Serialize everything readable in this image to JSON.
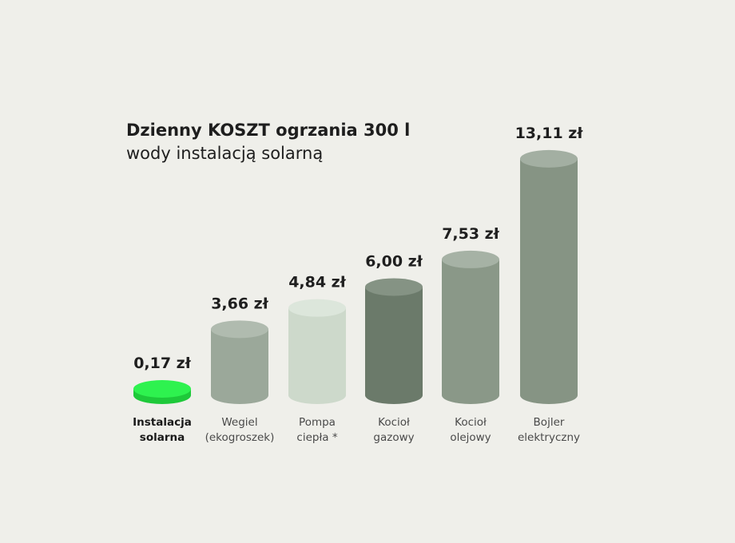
{
  "chart_data": {
    "type": "bar",
    "title_line1": "Dzienny KOSZT ogrzania 300 l",
    "title_line2": "wody instalacją solarną",
    "xlabel": "",
    "ylabel": "",
    "ylim": [
      0,
      14
    ],
    "grid": false,
    "categories": [
      [
        "Instalacja",
        "solarna"
      ],
      [
        "Wegiel",
        "(ekogroszek)"
      ],
      [
        "Pompa",
        "ciepła *"
      ],
      [
        "Kocioł",
        "gazowy"
      ],
      [
        "Kocioł",
        "olejowy"
      ],
      [
        "Bojler",
        "elektryczny"
      ]
    ],
    "values": [
      0.17,
      3.66,
      4.84,
      6.0,
      7.53,
      13.11
    ],
    "value_labels": [
      "0,17 zł",
      "3,66 zł",
      "4,84 zł",
      "6,00 zł",
      "7,53 zł",
      "13,11 zł"
    ],
    "colors": [
      {
        "body": "#1ec93a",
        "top": "#2ef24f"
      },
      {
        "body": "#9ba89a",
        "top": "#b0bbaf"
      },
      {
        "body": "#cdd9cb",
        "top": "#dce6db"
      },
      {
        "body": "#6b7a6a",
        "top": "#859384"
      },
      {
        "body": "#8a9888",
        "top": "#a6b2a5"
      },
      {
        "body": "#869484",
        "top": "#a3afa2"
      }
    ],
    "highlight_index": 0
  }
}
